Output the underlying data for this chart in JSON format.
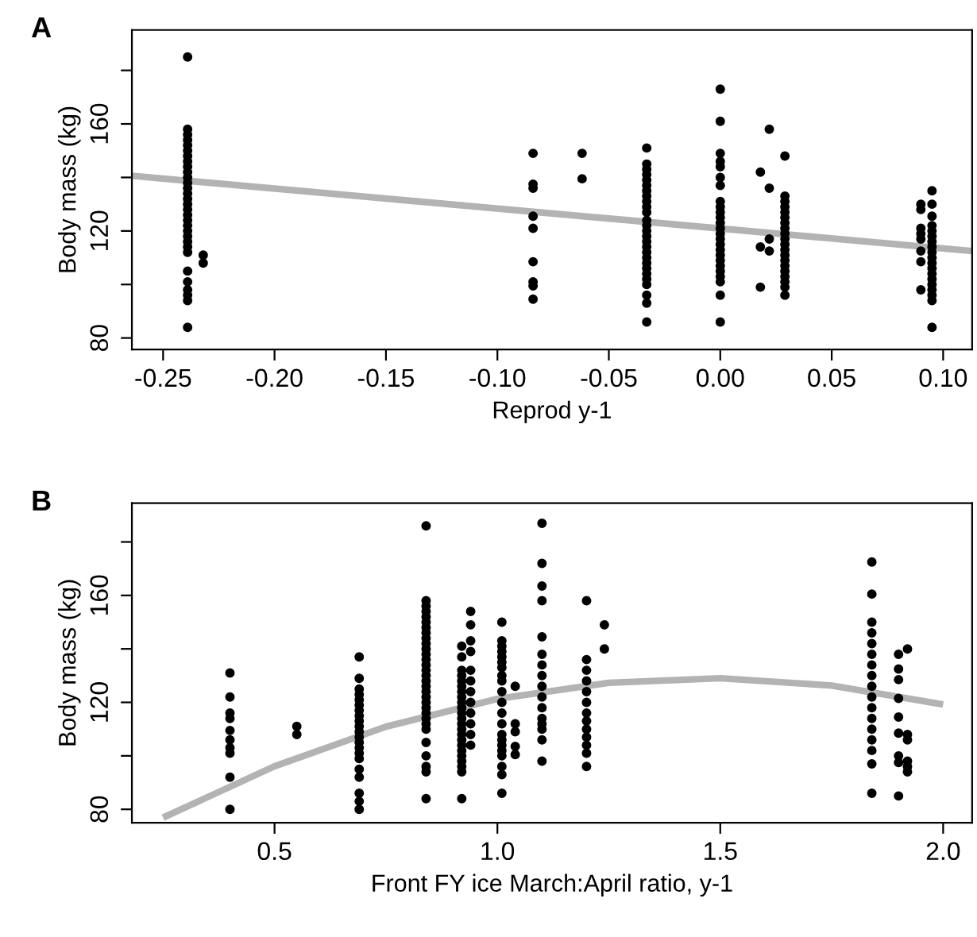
{
  "chart_data": [
    {
      "type": "scatter",
      "title": "A",
      "xlabel": "Reprod y-1",
      "ylabel": "Body mass (kg)",
      "grid": false,
      "xlim": [
        -0.264,
        0.113
      ],
      "ylim": [
        75.7,
        195.1
      ],
      "xticks": [
        {
          "value": -0.25,
          "label": "-0.25"
        },
        {
          "value": -0.2,
          "label": "-0.20"
        },
        {
          "value": -0.15,
          "label": "-0.15"
        },
        {
          "value": -0.1,
          "label": "-0.10"
        },
        {
          "value": -0.05,
          "label": "-0.05"
        },
        {
          "value": 0,
          "label": "0.00"
        },
        {
          "value": 0.05,
          "label": "0.05"
        },
        {
          "value": 0.1,
          "label": "0.10"
        }
      ],
      "yticks": [
        80,
        {
          "value": 100,
          "label": null
        },
        120,
        {
          "value": 140,
          "label": null
        },
        160,
        {
          "value": 180,
          "label": null
        }
      ],
      "series": [
        {
          "marker": "circle",
          "color": "#000000",
          "x": [
            -0.239,
            -0.239,
            -0.239,
            -0.239,
            -0.239,
            -0.239,
            -0.239,
            -0.239,
            -0.239,
            -0.239,
            -0.239,
            -0.239,
            -0.239,
            -0.239,
            -0.239,
            -0.239,
            -0.239,
            -0.239,
            -0.239,
            -0.239,
            -0.239,
            -0.239,
            -0.239,
            -0.239,
            -0.239,
            -0.239,
            -0.239,
            -0.239,
            -0.239,
            -0.239,
            -0.239,
            -0.232,
            -0.232,
            -0.084,
            -0.084,
            -0.084,
            -0.084,
            -0.084,
            -0.084,
            -0.084,
            -0.084,
            -0.084,
            -0.062,
            -0.062,
            -0.033,
            -0.033,
            -0.033,
            -0.033,
            -0.033,
            -0.033,
            -0.033,
            -0.033,
            -0.033,
            -0.033,
            -0.033,
            -0.033,
            -0.033,
            -0.033,
            -0.033,
            -0.033,
            -0.033,
            -0.033,
            -0.033,
            -0.033,
            -0.033,
            -0.033,
            -0.033,
            -0.033,
            -0.033,
            -0.033,
            -0.033,
            0,
            0,
            0,
            0,
            0,
            0,
            0,
            0,
            0,
            0,
            0,
            0,
            0,
            0,
            0,
            0,
            0,
            0,
            0,
            0,
            0,
            0,
            0,
            0,
            0,
            0.018,
            0.018,
            0.018,
            0.022,
            0.022,
            0.022,
            0.022,
            0.029,
            0.029,
            0.029,
            0.029,
            0.029,
            0.029,
            0.029,
            0.029,
            0.029,
            0.029,
            0.029,
            0.029,
            0.029,
            0.029,
            0.029,
            0.029,
            0.029,
            0.029,
            0.029,
            0.029,
            0.09,
            0.09,
            0.09,
            0.09,
            0.09,
            0.09,
            0.09,
            0.09,
            0.095,
            0.095,
            0.095,
            0.095,
            0.095,
            0.095,
            0.095,
            0.095,
            0.095,
            0.095,
            0.095,
            0.095,
            0.095,
            0.095,
            0.095,
            0.095,
            0.095,
            0.095,
            0.095
          ],
          "values": [
            185,
            158,
            156,
            154,
            152,
            150,
            148,
            146,
            144,
            142,
            140,
            138,
            136,
            134,
            132,
            130,
            128,
            126,
            124,
            122,
            120,
            118,
            116,
            114,
            112,
            105,
            101,
            98,
            96,
            94,
            84,
            111,
            108,
            149,
            137.5,
            136,
            125.5,
            121,
            108.5,
            101,
            99.5,
            94.5,
            149,
            139.5,
            151,
            145,
            143,
            141,
            139,
            137,
            135,
            133,
            131,
            129,
            127,
            124,
            122,
            120,
            118,
            116,
            114,
            112,
            110,
            108,
            106,
            104,
            102,
            100,
            96,
            93,
            86,
            173,
            161,
            149,
            146,
            144,
            140,
            137,
            131,
            129,
            127,
            125,
            123,
            121,
            119,
            117,
            115,
            113,
            111,
            109,
            107,
            105,
            103,
            101,
            96,
            86,
            142,
            114,
            99,
            158,
            136,
            117,
            112.5,
            148,
            133,
            131,
            129,
            127,
            125,
            123,
            121,
            119,
            117,
            115,
            113,
            111,
            109,
            107,
            105,
            103,
            101,
            99,
            96,
            130,
            128,
            121,
            119,
            117,
            112.5,
            108.5,
            98,
            135,
            130,
            125.5,
            122,
            120,
            118,
            116,
            114,
            112,
            110,
            108,
            106,
            104,
            102,
            100,
            98,
            96,
            94,
            84
          ]
        },
        {
          "type": "line",
          "color": "#b3b3b3",
          "x": [
            -0.264,
            0.113
          ],
          "values": [
            140.6,
            112.5
          ]
        }
      ]
    },
    {
      "type": "scatter",
      "title": "B",
      "xlabel": "Front FY ice March:April ratio, y-1",
      "ylabel": "Body mass (kg)",
      "grid": false,
      "xlim": [
        0.18,
        2.065
      ],
      "ylim": [
        75,
        194.5
      ],
      "xticks": [
        {
          "value": 0.5,
          "label": "0.5"
        },
        {
          "value": 1.0,
          "label": "1.0"
        },
        {
          "value": 1.5,
          "label": "1.5"
        },
        {
          "value": 2.0,
          "label": "2.0"
        }
      ],
      "yticks": [
        80,
        {
          "value": 100,
          "label": null
        },
        120,
        {
          "value": 140,
          "label": null
        },
        160,
        {
          "value": 180,
          "label": null
        }
      ],
      "series": [
        {
          "marker": "circle",
          "color": "#000000",
          "x": [
            0.4,
            0.4,
            0.4,
            0.4,
            0.4,
            0.4,
            0.4,
            0.4,
            0.4,
            0.4,
            0.55,
            0.55,
            0.69,
            0.69,
            0.69,
            0.69,
            0.69,
            0.69,
            0.69,
            0.69,
            0.69,
            0.69,
            0.69,
            0.69,
            0.69,
            0.69,
            0.69,
            0.69,
            0.69,
            0.69,
            0.69,
            0.69,
            0.69,
            0.84,
            0.84,
            0.84,
            0.84,
            0.84,
            0.84,
            0.84,
            0.84,
            0.84,
            0.84,
            0.84,
            0.84,
            0.84,
            0.84,
            0.84,
            0.84,
            0.84,
            0.84,
            0.84,
            0.84,
            0.84,
            0.84,
            0.84,
            0.84,
            0.84,
            0.84,
            0.84,
            0.84,
            0.84,
            0.84,
            0.84,
            0.92,
            0.92,
            0.92,
            0.92,
            0.92,
            0.92,
            0.92,
            0.92,
            0.92,
            0.92,
            0.92,
            0.92,
            0.92,
            0.92,
            0.92,
            0.92,
            0.92,
            0.92,
            0.92,
            0.92,
            0.92,
            0.92,
            0.92,
            0.94,
            0.94,
            0.94,
            0.94,
            0.94,
            0.94,
            0.94,
            0.94,
            0.94,
            0.94,
            0.94,
            0.94,
            1.01,
            1.01,
            1.01,
            1.01,
            1.01,
            1.01,
            1.01,
            1.01,
            1.01,
            1.01,
            1.01,
            1.01,
            1.01,
            1.01,
            1.01,
            1.01,
            1.01,
            1.01,
            1.01,
            1.01,
            1.01,
            1.04,
            1.04,
            1.04,
            1.04,
            1.04,
            1.1,
            1.1,
            1.1,
            1.1,
            1.1,
            1.1,
            1.1,
            1.1,
            1.1,
            1.1,
            1.1,
            1.1,
            1.1,
            1.1,
            1.1,
            1.1,
            1.2,
            1.2,
            1.2,
            1.2,
            1.2,
            1.2,
            1.2,
            1.2,
            1.2,
            1.2,
            1.2,
            1.2,
            1.2,
            1.24,
            1.24,
            1.84,
            1.84,
            1.84,
            1.84,
            1.84,
            1.84,
            1.84,
            1.84,
            1.84,
            1.84,
            1.84,
            1.84,
            1.84,
            1.84,
            1.84,
            1.84,
            1.84,
            1.9,
            1.9,
            1.9,
            1.9,
            1.9,
            1.9,
            1.9,
            1.9,
            1.9,
            1.92,
            1.92,
            1.92,
            1.92,
            1.92,
            1.92
          ],
          "values": [
            131,
            122,
            116,
            114,
            109.5,
            106,
            103,
            101,
            92,
            80,
            111,
            108,
            137,
            129,
            125,
            123,
            121,
            119,
            117,
            115,
            113,
            111,
            109,
            107,
            105,
            103,
            101,
            99,
            95,
            92,
            86,
            83,
            80,
            186,
            158,
            156,
            154,
            152,
            150,
            148,
            146,
            144,
            142,
            140,
            138,
            136,
            134,
            132,
            130,
            128,
            126,
            124,
            122,
            120,
            118,
            116,
            114,
            112,
            110,
            105,
            100,
            96,
            94,
            84,
            141,
            137,
            132,
            130,
            128,
            126,
            124,
            122,
            120,
            118,
            116,
            114,
            112,
            110,
            108,
            106,
            104,
            102,
            100,
            98,
            96,
            94,
            84,
            154,
            149,
            143,
            139,
            132,
            128,
            124,
            120,
            116,
            112,
            108,
            104,
            150,
            143,
            141,
            139,
            137,
            135,
            133,
            130,
            128,
            124,
            120,
            116,
            112,
            108,
            106,
            104,
            102,
            100,
            96,
            93,
            86,
            126,
            112,
            109,
            103.5,
            100.5,
            187,
            172,
            163.5,
            158,
            144.5,
            138,
            134,
            130,
            126,
            122,
            118,
            114,
            112,
            110,
            106,
            98,
            158,
            136,
            132,
            128,
            124,
            120,
            116,
            113,
            110,
            107,
            104,
            101,
            96,
            149,
            140,
            172.5,
            160.5,
            150,
            146,
            142,
            138,
            134,
            130,
            126,
            122,
            118,
            114,
            110,
            106,
            102,
            97,
            86,
            138,
            132.5,
            128.5,
            121.5,
            114.5,
            108.5,
            100,
            97.5,
            85,
            140,
            108,
            106,
            98,
            96,
            94
          ]
        },
        {
          "type": "line",
          "color": "#b3b3b3",
          "x": [
            0.25,
            0.5,
            0.75,
            1.0,
            1.25,
            1.5,
            1.75,
            2.0
          ],
          "values": [
            76.9,
            96.1,
            110.9,
            121.3,
            127.3,
            129.0,
            126.3,
            119.2
          ]
        }
      ]
    }
  ]
}
